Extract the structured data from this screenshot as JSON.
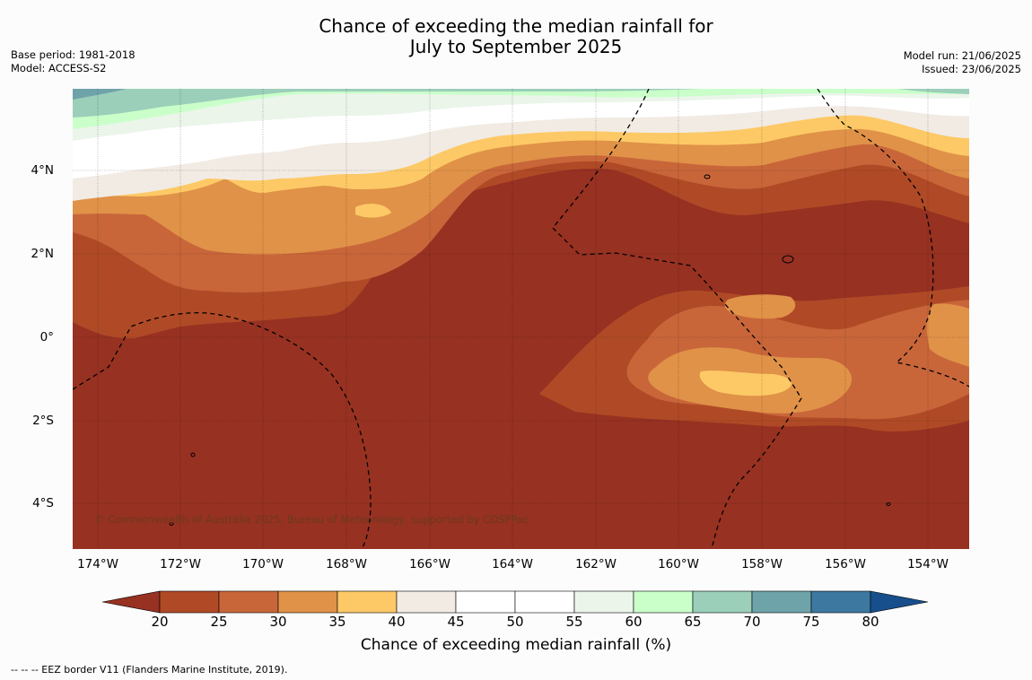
{
  "title_line1": "Chance of exceeding the median rainfall for",
  "title_line2": "July to September 2025",
  "base_period": "Base period: 1981-2018",
  "model": "Model: ACCESS-S2",
  "model_run": "Model run: 21/06/2025",
  "issued": "Issued: 23/06/2025",
  "lat_labels": [
    "4°N",
    "2°N",
    "0°",
    "2°S",
    "4°S"
  ],
  "lon_labels": [
    "174°W",
    "172°W",
    "170°W",
    "168°W",
    "166°W",
    "164°W",
    "162°W",
    "160°W",
    "158°W",
    "156°W",
    "154°W"
  ],
  "colorbar": {
    "ticks": [
      "20",
      "25",
      "30",
      "35",
      "40",
      "45",
      "50",
      "55",
      "60",
      "65",
      "70",
      "75",
      "80"
    ],
    "colors": [
      "#973122",
      "#b04a26",
      "#c8663a",
      "#e09248",
      "#fdc966",
      "#f1ebe4",
      "#ffffff",
      "#ffffff",
      "#ebf5ea",
      "#caffca",
      "#9bcfb9",
      "#6ea3aa",
      "#3d78a0",
      "#174f8c"
    ],
    "label": "Chance of exceeding median rainfall (%)"
  },
  "copyright": "© Commonwealth of Australia 2025, Bureau of Meteorology, supported by COSPPac",
  "eez_note": "--  --  -- EEZ border V11 (Flanders Marine Institute, 2019)."
}
